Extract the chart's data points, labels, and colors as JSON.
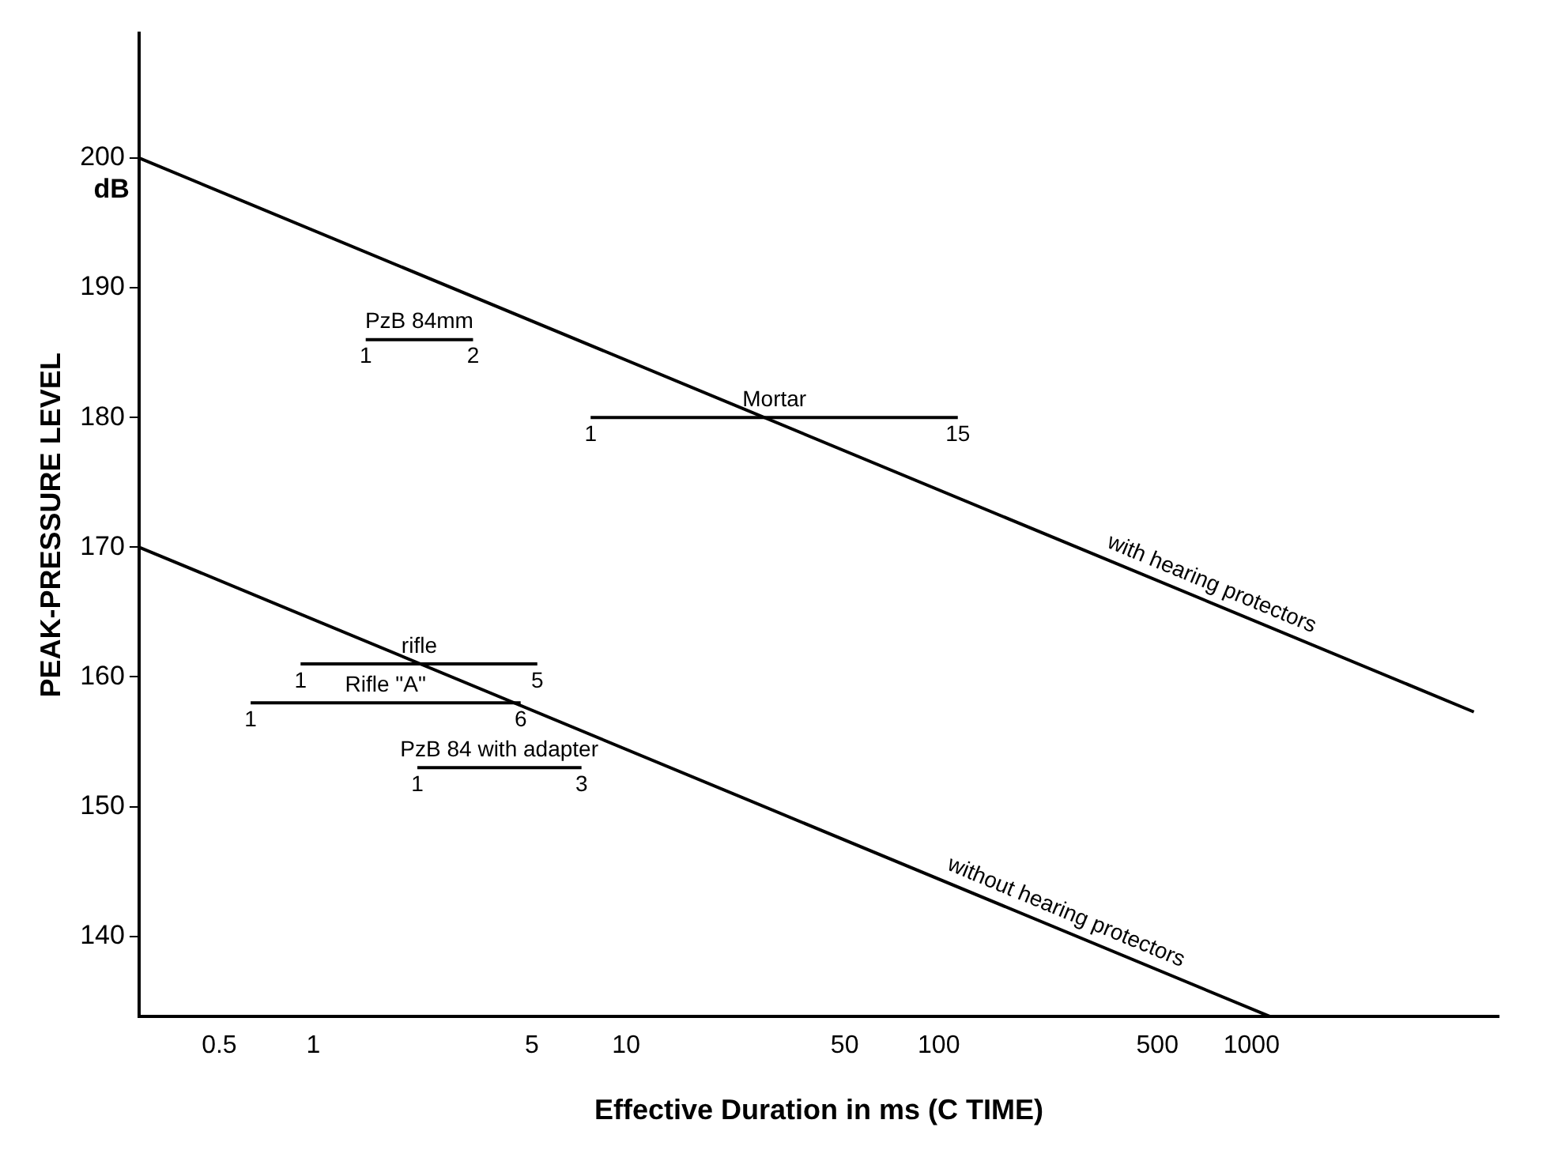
{
  "chart_data": {
    "type": "line",
    "xlabel": "Effective Duration in ms (C TIME)",
    "ylabel": "PEAK-PRESSURE LEVEL",
    "log": "x",
    "xlim": [
      0.277,
      6170
    ],
    "xticks": [
      0.5,
      1,
      5,
      10,
      50,
      100,
      500,
      1000
    ],
    "ylim": [
      133.8,
      209.6
    ],
    "yticks": [
      140,
      150,
      160,
      170,
      180,
      190,
      200
    ],
    "grid": false,
    "legend": false,
    "marker": "none",
    "series": [
      {
        "x": [
          0.277,
          5140
        ],
        "values": [
          200,
          157.3
        ],
        "color": "#000000"
      },
      {
        "x": [
          0.277,
          1150
        ],
        "values": [
          170,
          133.8
        ],
        "color": "#000000"
      },
      {
        "x": [
          1.47,
          3.24
        ],
        "values": [
          186,
          186
        ],
        "color": "#000000"
      },
      {
        "x": [
          7.7,
          115
        ],
        "values": [
          180,
          180
        ],
        "color": "#000000"
      },
      {
        "x": [
          0.91,
          5.2
        ],
        "values": [
          161,
          161
        ],
        "color": "#000000"
      },
      {
        "x": [
          0.63,
          4.6
        ],
        "values": [
          158,
          158
        ],
        "color": "#000000"
      },
      {
        "x": [
          2.15,
          7.2
        ],
        "values": [
          153,
          153
        ],
        "color": "#000000"
      }
    ],
    "annotations": [
      "dB",
      {
        "text": "with hearing protectors",
        "x": 710,
        "y": 165.9
      },
      {
        "text": "without hearing protectors",
        "x": 243,
        "y": 140.6
      },
      {
        "text": "1",
        "x": 1.47,
        "y": 186
      },
      {
        "text": "2",
        "x": 3.24,
        "y": 186
      },
      {
        "text": "PzB 84mm",
        "x": 2.18,
        "y": 186
      },
      {
        "text": "1",
        "x": 7.7,
        "y": 180
      },
      {
        "text": "15",
        "x": 115,
        "y": 180
      },
      {
        "text": "Mortar",
        "x": 29.8,
        "y": 180
      },
      {
        "text": "rifle",
        "x": 2.18,
        "y": 161
      },
      {
        "text": "1",
        "x": 0.91,
        "y": 161
      },
      {
        "text": "5",
        "x": 5.2,
        "y": 161
      },
      {
        "text": "1",
        "x": 0.63,
        "y": 158
      },
      {
        "text": "Rifle \"A\"",
        "x": 1.7,
        "y": 158
      },
      {
        "text": "6",
        "x": 4.6,
        "y": 158
      },
      {
        "text": "1",
        "x": 2.15,
        "y": 153
      },
      {
        "text": "3",
        "x": 7.2,
        "y": 153
      },
      {
        "text": "PzB 84 with adapter",
        "x": 3.93,
        "y": 153
      }
    ]
  }
}
